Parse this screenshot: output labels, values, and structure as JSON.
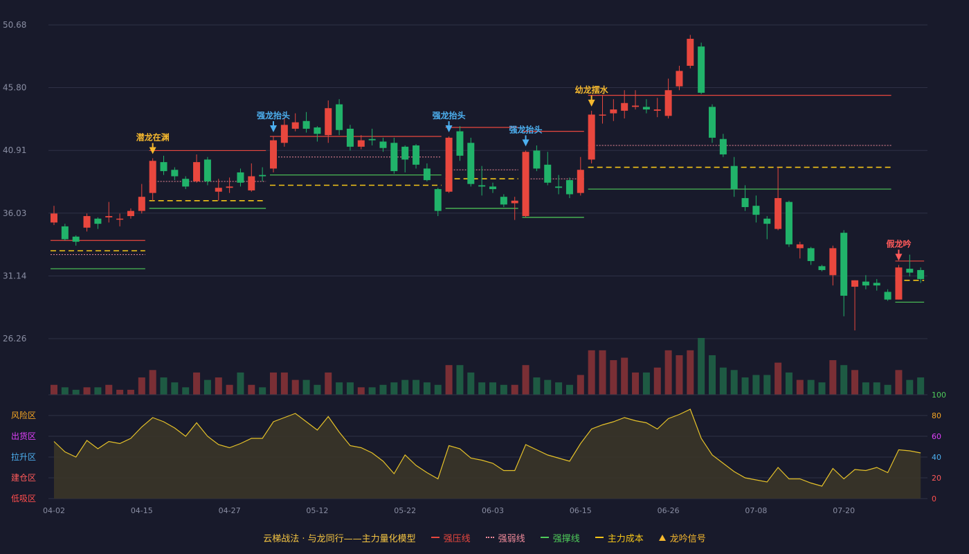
{
  "colors": {
    "up": "#e8473e",
    "down": "#21b36a",
    "grid": "#2e3146",
    "axis_text": "#8a8ea3",
    "cost": "#f5c518",
    "support": "#4fcc5a",
    "pressure": "#e8473e",
    "weak": "#f08a9a",
    "osc_line": "#e6c229",
    "osc_fill": "#3a3528",
    "signal_gold": "#f5b82e",
    "signal_blue": "#4db0f0",
    "signal_red": "#ff5a5a"
  },
  "legend": {
    "title": "云梯战法 · 与龙同行——主力量化模型",
    "items": [
      {
        "label": "强压线",
        "color": "#e8473e",
        "style": "solid",
        "icon": "line-solid-icon"
      },
      {
        "label": "强弱线",
        "color": "#f08a9a",
        "style": "dotted",
        "icon": "line-dotted-icon"
      },
      {
        "label": "强撑线",
        "color": "#4fcc5a",
        "style": "solid",
        "icon": "line-solid-icon"
      },
      {
        "label": "主力成本",
        "color": "#f5c518",
        "style": "dashed",
        "icon": "line-dashed-icon"
      },
      {
        "label": "龙吟信号",
        "color": "#f5b82e",
        "style": "triangle",
        "icon": "triangle-icon"
      }
    ]
  },
  "chart_data": {
    "type": "candlestick",
    "price_axis": {
      "ticks": [
        26.26,
        31.14,
        36.03,
        40.91,
        45.8,
        50.68
      ],
      "range": [
        26.26,
        50.68
      ]
    },
    "x_tick_labels": [
      {
        "i": 0,
        "label": "04-02"
      },
      {
        "i": 8,
        "label": "04-15"
      },
      {
        "i": 16,
        "label": "04-27"
      },
      {
        "i": 24,
        "label": "05-12"
      },
      {
        "i": 32,
        "label": "05-22"
      },
      {
        "i": 40,
        "label": "06-03"
      },
      {
        "i": 48,
        "label": "06-15"
      },
      {
        "i": 56,
        "label": "06-26"
      },
      {
        "i": 64,
        "label": "07-08"
      },
      {
        "i": 72,
        "label": "07-20"
      }
    ],
    "candles": [
      [
        35.3,
        36.0,
        36.6,
        35.1
      ],
      [
        35.0,
        34.0,
        35.2,
        33.9
      ],
      [
        34.2,
        33.8,
        34.3,
        33.5
      ],
      [
        34.9,
        35.8,
        36.0,
        34.6
      ],
      [
        35.6,
        35.2,
        35.7,
        34.8
      ],
      [
        35.7,
        35.8,
        36.9,
        35.3
      ],
      [
        35.6,
        35.6,
        36.0,
        35.0
      ],
      [
        35.8,
        36.2,
        36.4,
        35.6
      ],
      [
        36.2,
        37.3,
        38.3,
        36.0
      ],
      [
        37.6,
        40.1,
        40.3,
        37.0
      ],
      [
        40.0,
        39.3,
        40.5,
        39.0
      ],
      [
        39.4,
        38.9,
        39.6,
        38.6
      ],
      [
        38.7,
        38.1,
        38.9,
        37.9
      ],
      [
        38.5,
        40.0,
        40.6,
        38.4
      ],
      [
        40.2,
        38.5,
        40.4,
        38.2
      ],
      [
        37.7,
        38.0,
        38.7,
        37.0
      ],
      [
        38.0,
        38.1,
        38.8,
        37.6
      ],
      [
        39.2,
        38.4,
        39.5,
        38.1
      ],
      [
        37.8,
        38.9,
        39.9,
        37.7
      ],
      [
        39.0,
        38.9,
        39.6,
        38.5
      ],
      [
        39.5,
        41.7,
        42.0,
        39.2
      ],
      [
        41.5,
        42.9,
        43.4,
        41.2
      ],
      [
        42.6,
        43.1,
        43.8,
        42.4
      ],
      [
        43.2,
        42.6,
        43.9,
        42.3
      ],
      [
        42.7,
        42.2,
        42.8,
        41.6
      ],
      [
        42.1,
        44.2,
        44.8,
        41.5
      ],
      [
        44.5,
        42.5,
        44.9,
        42.1
      ],
      [
        42.6,
        41.2,
        42.9,
        40.9
      ],
      [
        41.2,
        41.7,
        42.1,
        41.0
      ],
      [
        41.8,
        41.7,
        42.6,
        41.3
      ],
      [
        41.6,
        41.1,
        41.9,
        40.8
      ],
      [
        41.5,
        39.3,
        41.9,
        39.1
      ],
      [
        41.2,
        40.2,
        41.3,
        39.2
      ],
      [
        41.3,
        39.8,
        41.4,
        39.5
      ],
      [
        39.5,
        38.6,
        39.9,
        38.5
      ],
      [
        37.9,
        36.2,
        38.0,
        35.8
      ],
      [
        37.7,
        41.9,
        42.0,
        37.6
      ],
      [
        42.4,
        40.5,
        42.8,
        40.1
      ],
      [
        41.5,
        38.3,
        41.9,
        38.1
      ],
      [
        38.2,
        38.1,
        39.7,
        37.4
      ],
      [
        38.1,
        37.9,
        38.4,
        37.6
      ],
      [
        37.3,
        36.7,
        37.5,
        36.5
      ],
      [
        36.8,
        37.0,
        37.3,
        35.5
      ],
      [
        35.8,
        40.8,
        40.9,
        35.7
      ],
      [
        40.9,
        39.5,
        41.3,
        39.3
      ],
      [
        39.8,
        38.4,
        40.8,
        38.2
      ],
      [
        38.1,
        38.0,
        39.0,
        37.5
      ],
      [
        38.6,
        37.5,
        38.8,
        37.2
      ],
      [
        37.6,
        39.4,
        40.4,
        37.4
      ],
      [
        40.2,
        43.7,
        44.0,
        39.9
      ],
      [
        43.7,
        43.7,
        45.2,
        43.0
      ],
      [
        43.8,
        44.1,
        44.9,
        43.2
      ],
      [
        44.0,
        44.6,
        45.6,
        43.4
      ],
      [
        44.3,
        44.4,
        45.6,
        44.1
      ],
      [
        44.3,
        44.1,
        44.9,
        43.8
      ],
      [
        44.0,
        44.1,
        45.0,
        43.5
      ],
      [
        43.6,
        45.6,
        46.5,
        43.4
      ],
      [
        45.9,
        47.1,
        47.5,
        45.6
      ],
      [
        47.5,
        49.6,
        49.9,
        47.3
      ],
      [
        49.0,
        45.4,
        49.3,
        45.3
      ],
      [
        44.3,
        41.9,
        44.5,
        41.5
      ],
      [
        41.8,
        40.6,
        42.2,
        40.4
      ],
      [
        39.7,
        37.9,
        40.4,
        37.3
      ],
      [
        37.2,
        36.5,
        38.2,
        36.2
      ],
      [
        36.6,
        35.9,
        37.4,
        35.3
      ],
      [
        35.6,
        35.2,
        35.8,
        34.0
      ],
      [
        34.8,
        37.2,
        39.6,
        34.7
      ],
      [
        36.9,
        33.6,
        37.0,
        33.4
      ],
      [
        33.3,
        33.6,
        33.8,
        32.5
      ],
      [
        33.3,
        32.3,
        33.4,
        32.0
      ],
      [
        31.9,
        31.6,
        32.0,
        31.5
      ],
      [
        31.2,
        33.3,
        33.5,
        30.4
      ],
      [
        34.5,
        29.6,
        34.7,
        28.0
      ],
      [
        30.3,
        30.8,
        30.8,
        26.9
      ],
      [
        30.7,
        30.4,
        31.2,
        30.1
      ],
      [
        30.6,
        30.4,
        30.9,
        30.0
      ],
      [
        29.9,
        29.3,
        30.1,
        29.2
      ],
      [
        29.3,
        31.8,
        32.0,
        29.3
      ],
      [
        31.7,
        31.4,
        32.8,
        31.1
      ],
      [
        31.6,
        30.9,
        31.8,
        30.6
      ]
    ],
    "volume": [
      4,
      3,
      2,
      3,
      3,
      4,
      2,
      2,
      7,
      10,
      7,
      5,
      3,
      9,
      6,
      7,
      4,
      9,
      4,
      3,
      9,
      9,
      6,
      6,
      4,
      9,
      5,
      5,
      3,
      3,
      4,
      5,
      6,
      6,
      5,
      4,
      12,
      12,
      9,
      5,
      5,
      4,
      4,
      12,
      7,
      6,
      5,
      4,
      8,
      18,
      18,
      14,
      15,
      9,
      9,
      11,
      18,
      16,
      18,
      23,
      16,
      11,
      10,
      7,
      8,
      8,
      13,
      9,
      6,
      6,
      5,
      14,
      12,
      10,
      5,
      5,
      4,
      10,
      6,
      7
    ],
    "volume_max": 23,
    "oscillator": {
      "axis": {
        "ticks": [
          0,
          20,
          40,
          60,
          80,
          100
        ],
        "range": [
          0,
          100
        ]
      },
      "zones": [
        "低吸区",
        "建仓区",
        "拉升区",
        "出货区",
        "风险区"
      ],
      "zone_colors": [
        "#ff4d4d",
        "#ff5a5a",
        "#4db0f0",
        "#e040fb",
        "#f5a623"
      ],
      "values": [
        55,
        45,
        40,
        56,
        48,
        55,
        53,
        58,
        69,
        78,
        74,
        68,
        60,
        73,
        60,
        52,
        49,
        53,
        58,
        58,
        74,
        78,
        82,
        74,
        66,
        79,
        64,
        51,
        49,
        44,
        36,
        24,
        42,
        32,
        25,
        19,
        51,
        48,
        39,
        37,
        34,
        27,
        27,
        52,
        47,
        42,
        39,
        36,
        53,
        67,
        71,
        74,
        78,
        75,
        73,
        67,
        77,
        81,
        86,
        58,
        42,
        34,
        26,
        20,
        18,
        16,
        30,
        19,
        19,
        15,
        12,
        29,
        19,
        28,
        27,
        30,
        25,
        47,
        46,
        44
      ]
    },
    "signals": [
      {
        "i": 9,
        "label": "潜龙在渊",
        "color": "#f5b82e"
      },
      {
        "i": 20,
        "label": "强龙抬头",
        "color": "#4db0f0"
      },
      {
        "i": 36,
        "label": "强龙抬头",
        "color": "#4db0f0"
      },
      {
        "i": 43,
        "label": "强龙抬头",
        "color": "#4db0f0"
      },
      {
        "i": 49,
        "label": "幼龙摆水",
        "color": "#f5b82e"
      },
      {
        "i": 77,
        "label": "假龙吟",
        "color": "#ff5a5a"
      }
    ],
    "level_lines": [
      {
        "type": "pressure",
        "from": 0,
        "to": 8,
        "value": 33.9
      },
      {
        "type": "cost",
        "from": 0,
        "to": 8,
        "value": 33.1
      },
      {
        "type": "weak",
        "from": 0,
        "to": 8,
        "value": 32.8
      },
      {
        "type": "support",
        "from": 0,
        "to": 8,
        "value": 31.7
      },
      {
        "type": "pressure",
        "from": 9,
        "to": 19,
        "value": 40.9
      },
      {
        "type": "weak",
        "from": 9,
        "to": 19,
        "value": 38.5
      },
      {
        "type": "cost",
        "from": 9,
        "to": 19,
        "value": 37.0
      },
      {
        "type": "support",
        "from": 9,
        "to": 19,
        "value": 36.4
      },
      {
        "type": "pressure",
        "from": 20,
        "to": 35,
        "value": 42.0
      },
      {
        "type": "weak",
        "from": 20,
        "to": 35,
        "value": 40.4
      },
      {
        "type": "support",
        "from": 20,
        "to": 35,
        "value": 39.0
      },
      {
        "type": "cost",
        "from": 20,
        "to": 35,
        "value": 38.2
      },
      {
        "type": "pressure",
        "from": 36,
        "to": 42,
        "value": 42.7
      },
      {
        "type": "weak",
        "from": 36,
        "to": 42,
        "value": 39.4
      },
      {
        "type": "cost",
        "from": 36,
        "to": 42,
        "value": 38.7
      },
      {
        "type": "support",
        "from": 36,
        "to": 42,
        "value": 36.4
      },
      {
        "type": "pressure",
        "from": 43,
        "to": 48,
        "value": 42.4
      },
      {
        "type": "weak",
        "from": 43,
        "to": 48,
        "value": 38.7
      },
      {
        "type": "support",
        "from": 43,
        "to": 48,
        "value": 35.7
      },
      {
        "type": "pressure",
        "from": 49,
        "to": 76,
        "value": 45.2
      },
      {
        "type": "weak",
        "from": 49,
        "to": 76,
        "value": 41.3
      },
      {
        "type": "cost",
        "from": 49,
        "to": 76,
        "value": 39.6
      },
      {
        "type": "support",
        "from": 49,
        "to": 76,
        "value": 37.9
      },
      {
        "type": "pressure",
        "from": 77,
        "to": 79,
        "value": 32.3
      },
      {
        "type": "cost",
        "from": 77,
        "to": 79,
        "value": 30.8
      },
      {
        "type": "support",
        "from": 77,
        "to": 79,
        "value": 29.1
      }
    ]
  }
}
